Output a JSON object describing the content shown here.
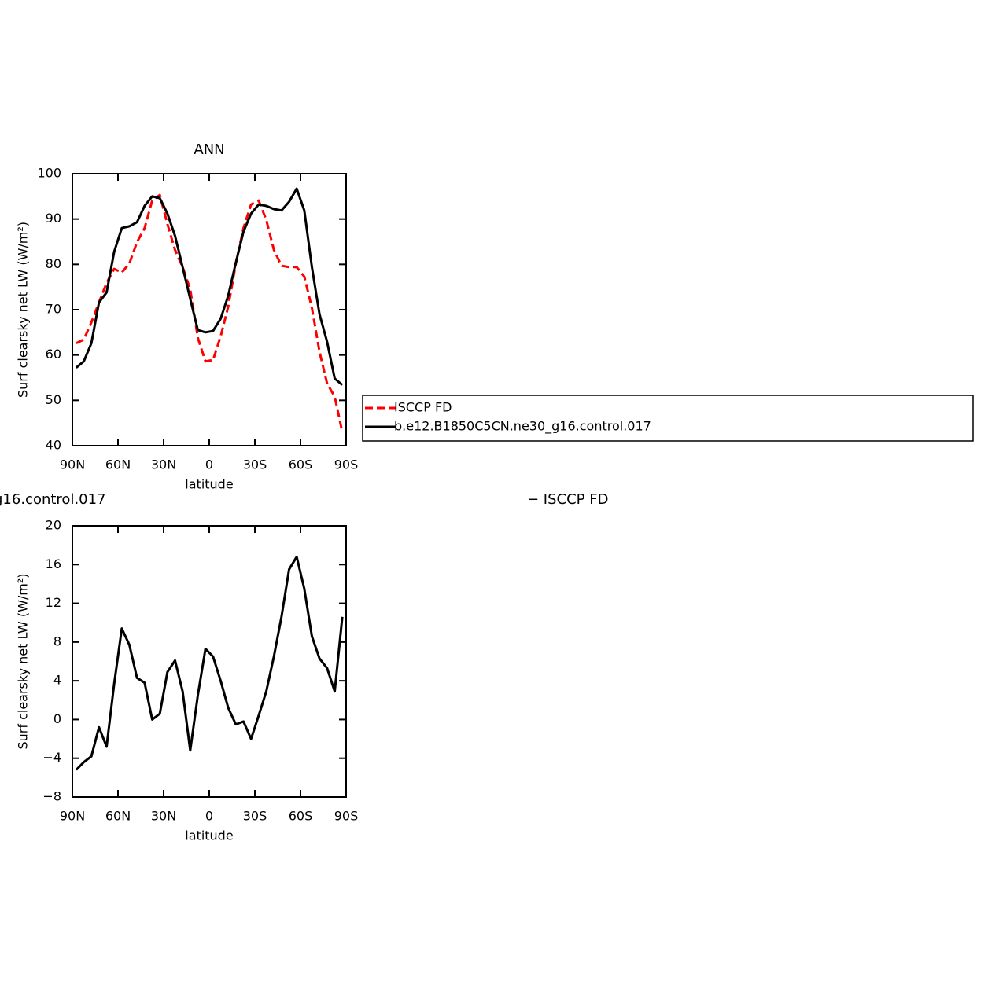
{
  "chart_data": [
    {
      "type": "line",
      "title": "ANN",
      "x_label": "latitude",
      "y_label": "Surf clearsky net LW (W/m²)",
      "x": [
        87.5,
        82.5,
        77.5,
        72.5,
        67.5,
        62.5,
        57.5,
        52.5,
        47.5,
        42.5,
        37.5,
        32.5,
        27.5,
        22.5,
        17.5,
        12.5,
        7.5,
        2.5,
        -2.5,
        -7.5,
        -12.5,
        -17.5,
        -22.5,
        -27.5,
        -32.5,
        -37.5,
        -42.5,
        -47.5,
        -52.5,
        -57.5,
        -62.5,
        -67.5,
        -72.5,
        -77.5,
        -82.5,
        -87.5
      ],
      "series": [
        {
          "name": "ISCCP FD",
          "color": "#ff0000",
          "dash": true,
          "values": [
            62.6,
            63.4,
            67.2,
            71.6,
            75.9,
            79.0,
            78.2,
            80.2,
            84.9,
            88.0,
            94.1,
            95.3,
            88.9,
            83.2,
            79.4,
            74.5,
            63.8,
            58.6,
            58.9,
            64.1,
            70.7,
            80.2,
            88.0,
            93.2,
            94.1,
            89.8,
            83.2,
            79.7,
            79.4,
            79.4,
            77.3,
            70.4,
            60.7,
            53.7,
            50.8,
            43.0
          ]
        },
        {
          "name": "b.e12.B1850C5CN.ne30_g16.control.017",
          "color": "#000000",
          "dash": false,
          "values": [
            57.2,
            58.6,
            62.6,
            71.6,
            73.8,
            82.8,
            88.0,
            88.4,
            89.3,
            92.9,
            95.0,
            94.6,
            91.2,
            86.3,
            79.4,
            72.4,
            65.5,
            65.0,
            65.3,
            68.0,
            73.1,
            80.4,
            87.2,
            91.2,
            93.2,
            92.9,
            92.2,
            91.9,
            93.8,
            96.7,
            91.9,
            79.4,
            69.0,
            62.9,
            54.8,
            53.4
          ]
        }
      ],
      "xlim": [
        90,
        -90
      ],
      "xticks": [
        {
          "value": 90,
          "label": "90N"
        },
        {
          "value": 60,
          "label": "60N"
        },
        {
          "value": 30,
          "label": "30N"
        },
        0,
        {
          "value": -30,
          "label": "30S"
        },
        {
          "value": -60,
          "label": "60S"
        },
        {
          "value": -90,
          "label": "90S"
        }
      ],
      "ylim": [
        40,
        100
      ],
      "yticks": [
        40,
        50,
        60,
        70,
        80,
        90,
        100
      ],
      "legend_position": "right"
    },
    {
      "type": "line",
      "left_title": "g16.control.017",
      "right_title": "− ISCCP FD",
      "x_label": "latitude",
      "y_label": "Surf clearsky net LW (W/m²)",
      "x": [
        87.5,
        82.5,
        77.5,
        72.5,
        67.5,
        62.5,
        57.5,
        52.5,
        47.5,
        42.5,
        37.5,
        32.5,
        27.5,
        22.5,
        17.5,
        12.5,
        7.5,
        2.5,
        -2.5,
        -7.5,
        -12.5,
        -17.5,
        -22.5,
        -27.5,
        -32.5,
        -37.5,
        -42.5,
        -47.5,
        -52.5,
        -57.5,
        -62.5,
        -67.5,
        -72.5,
        -77.5,
        -82.5,
        -87.5
      ],
      "series": [
        {
          "color": "#000000",
          "dash": false,
          "values": [
            -5.2,
            -4.4,
            -3.8,
            -0.8,
            -2.8,
            3.7,
            9.4,
            7.7,
            4.3,
            3.8,
            0.0,
            0.6,
            4.9,
            6.1,
            2.9,
            -3.2,
            2.5,
            7.3,
            6.5,
            4.0,
            1.2,
            -0.5,
            -0.2,
            -2.0,
            0.4,
            2.9,
            6.5,
            10.6,
            15.5,
            16.8,
            13.5,
            8.6,
            6.3,
            5.3,
            2.9,
            10.6
          ]
        }
      ],
      "xlim": [
        90,
        -90
      ],
      "xticks": [
        {
          "value": 90,
          "label": "90N"
        },
        {
          "value": 60,
          "label": "60N"
        },
        {
          "value": 30,
          "label": "30N"
        },
        0,
        {
          "value": -30,
          "label": "30S"
        },
        {
          "value": -60,
          "label": "60S"
        },
        {
          "value": -90,
          "label": "90S"
        }
      ],
      "ylim": [
        -8,
        20
      ],
      "yticks": [
        {
          "value": -8,
          "label": "−8"
        },
        {
          "value": -4,
          "label": "−4"
        },
        0,
        4,
        8,
        12,
        16,
        20
      ]
    }
  ]
}
